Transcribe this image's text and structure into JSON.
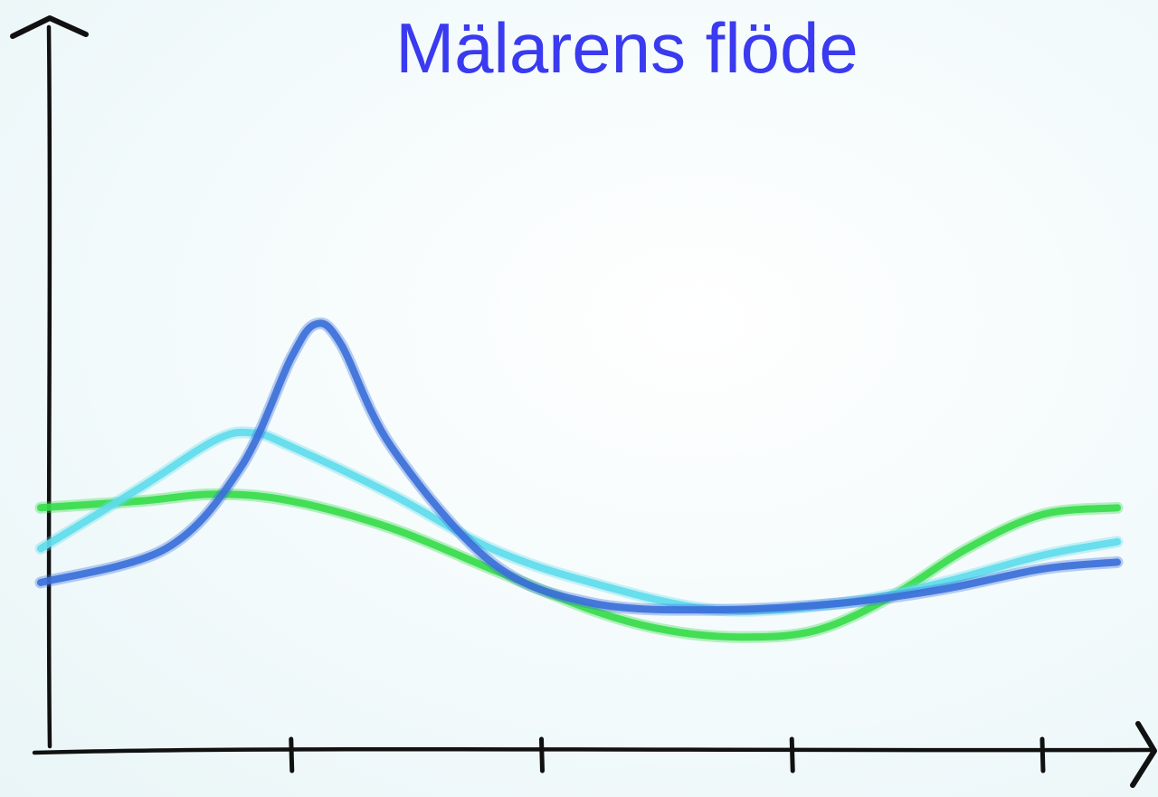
{
  "title_color": "#3a3af0",
  "chart_data": {
    "type": "line",
    "title": "Mälarens flöde",
    "xlabel": "",
    "ylabel": "",
    "xlim": [
      0,
      4.3
    ],
    "ylim": [
      0,
      1
    ],
    "x_ticks": [
      1,
      2,
      3,
      4
    ],
    "tick_labels": [],
    "grid": false,
    "legend": "none",
    "series": [
      {
        "color": "#3a6fd9",
        "x": [
          0,
          0.5,
          0.8,
          1.0,
          1.1,
          1.2,
          1.4,
          1.8,
          2.2,
          2.7,
          3.2,
          3.6,
          4.0,
          4.3
        ],
        "y": [
          0.25,
          0.3,
          0.42,
          0.58,
          0.63,
          0.6,
          0.45,
          0.28,
          0.22,
          0.21,
          0.22,
          0.24,
          0.27,
          0.28
        ]
      },
      {
        "color": "#5fdcec",
        "x": [
          0,
          0.4,
          0.7,
          0.85,
          1.0,
          1.4,
          1.8,
          2.2,
          2.7,
          3.2,
          3.6,
          4.0,
          4.3
        ],
        "y": [
          0.3,
          0.39,
          0.46,
          0.47,
          0.45,
          0.38,
          0.3,
          0.25,
          0.21,
          0.22,
          0.25,
          0.29,
          0.31
        ]
      },
      {
        "color": "#36db4a",
        "x": [
          0,
          0.4,
          0.7,
          1.0,
          1.4,
          1.8,
          2.2,
          2.5,
          2.8,
          3.1,
          3.4,
          3.7,
          4.0,
          4.3
        ],
        "y": [
          0.36,
          0.37,
          0.38,
          0.37,
          0.33,
          0.27,
          0.21,
          0.18,
          0.17,
          0.18,
          0.23,
          0.3,
          0.35,
          0.36
        ]
      }
    ]
  }
}
